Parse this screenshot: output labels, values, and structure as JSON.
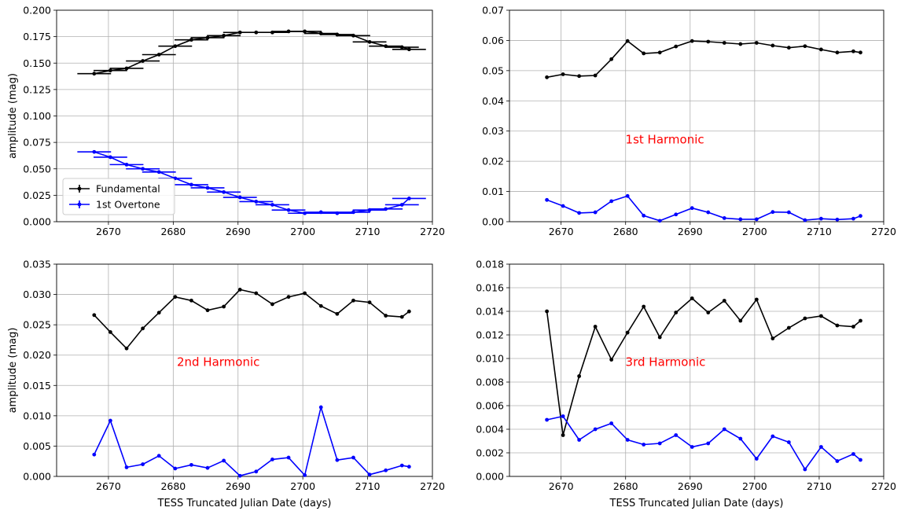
{
  "chart_data": [
    {
      "type": "line",
      "title": "",
      "xlabel": "",
      "ylabel": "amplitude (mag)",
      "xlim": [
        2662,
        2720
      ],
      "ylim": [
        0.0,
        0.2
      ],
      "xticks": [
        "2670",
        "2680",
        "2690",
        "2700",
        "2710",
        "2720"
      ],
      "yticks": [
        "0.000",
        "0.025",
        "0.050",
        "0.075",
        "0.100",
        "0.125",
        "0.150",
        "0.175",
        "0.200"
      ],
      "grid": true,
      "legend": "lower-left",
      "annotation": "",
      "x": [
        2667.8,
        2670.3,
        2672.8,
        2675.3,
        2677.8,
        2680.3,
        2682.8,
        2685.3,
        2687.8,
        2690.3,
        2692.8,
        2695.3,
        2697.8,
        2700.3,
        2702.8,
        2705.3,
        2707.8,
        2710.3,
        2712.8,
        2715.3,
        2716.4
      ],
      "series": [
        {
          "name": "Fundamental",
          "color": "#000000",
          "xerr": 2.6,
          "values": [
            0.14,
            0.143,
            0.145,
            0.152,
            0.158,
            0.166,
            0.172,
            0.174,
            0.176,
            0.179,
            0.179,
            0.179,
            0.18,
            0.18,
            0.178,
            0.177,
            0.176,
            0.17,
            0.166,
            0.165,
            0.163
          ]
        },
        {
          "name": "1st Overtone",
          "color": "#0000ff",
          "xerr": 2.6,
          "values": [
            0.066,
            0.061,
            0.054,
            0.05,
            0.047,
            0.041,
            0.035,
            0.032,
            0.028,
            0.023,
            0.019,
            0.016,
            0.011,
            0.008,
            0.009,
            0.008,
            0.009,
            0.011,
            0.012,
            0.016,
            0.022
          ]
        }
      ]
    },
    {
      "type": "line",
      "title": "",
      "xlabel": "",
      "ylabel": "",
      "xlim": [
        2662,
        2720
      ],
      "ylim": [
        0.0,
        0.07
      ],
      "xticks": [
        "2670",
        "2680",
        "2690",
        "2700",
        "2710",
        "2720"
      ],
      "yticks": [
        "0.00",
        "0.01",
        "0.02",
        "0.03",
        "0.04",
        "0.05",
        "0.06",
        "0.07"
      ],
      "grid": true,
      "legend": "",
      "annotation": "1st Harmonic",
      "x": [
        2667.8,
        2670.3,
        2672.8,
        2675.3,
        2677.8,
        2680.3,
        2682.8,
        2685.3,
        2687.8,
        2690.3,
        2692.8,
        2695.3,
        2697.8,
        2700.3,
        2702.8,
        2705.3,
        2707.8,
        2710.3,
        2712.8,
        2715.3,
        2716.4
      ],
      "series": [
        {
          "color": "#000000",
          "values": [
            0.0478,
            0.0488,
            0.0482,
            0.0484,
            0.0538,
            0.0598,
            0.0557,
            0.056,
            0.058,
            0.0598,
            0.0596,
            0.0592,
            0.0588,
            0.0592,
            0.0583,
            0.0576,
            0.0581,
            0.057,
            0.056,
            0.0564,
            0.056
          ]
        },
        {
          "color": "#0000ff",
          "values": [
            0.0072,
            0.0052,
            0.0029,
            0.0031,
            0.0068,
            0.0085,
            0.002,
            0.0003,
            0.0024,
            0.0045,
            0.0031,
            0.0012,
            0.0008,
            0.0008,
            0.0032,
            0.0031,
            0.0005,
            0.001,
            0.0007,
            0.001,
            0.0019
          ]
        }
      ]
    },
    {
      "type": "line",
      "title": "",
      "xlabel": "TESS Truncated Julian Date (days)",
      "ylabel": "amplitude (mag)",
      "xlim": [
        2662,
        2720
      ],
      "ylim": [
        0.0,
        0.035
      ],
      "xticks": [
        "2670",
        "2680",
        "2690",
        "2700",
        "2710",
        "2720"
      ],
      "yticks": [
        "0.000",
        "0.005",
        "0.010",
        "0.015",
        "0.020",
        "0.025",
        "0.030",
        "0.035"
      ],
      "grid": true,
      "legend": "",
      "annotation": "2nd Harmonic",
      "x": [
        2667.8,
        2670.3,
        2672.8,
        2675.3,
        2677.8,
        2680.3,
        2682.8,
        2685.3,
        2687.8,
        2690.3,
        2692.8,
        2695.3,
        2697.8,
        2700.3,
        2702.8,
        2705.3,
        2707.8,
        2710.3,
        2712.8,
        2715.3,
        2716.4
      ],
      "series": [
        {
          "color": "#000000",
          "values": [
            0.0266,
            0.0238,
            0.0211,
            0.0244,
            0.027,
            0.0296,
            0.029,
            0.0274,
            0.028,
            0.0308,
            0.0302,
            0.0284,
            0.0296,
            0.0302,
            0.0281,
            0.0268,
            0.029,
            0.0287,
            0.0265,
            0.0263,
            0.0272
          ]
        },
        {
          "color": "#0000ff",
          "values": [
            0.0036,
            0.0092,
            0.0015,
            0.002,
            0.0034,
            0.0013,
            0.0019,
            0.0014,
            0.0026,
            0.0001,
            0.0008,
            0.0028,
            0.0031,
            0.0002,
            0.0114,
            0.0027,
            0.0031,
            0.0003,
            0.001,
            0.0018,
            0.0016
          ]
        }
      ]
    },
    {
      "type": "line",
      "title": "",
      "xlabel": "TESS Truncated Julian Date (days)",
      "ylabel": "",
      "xlim": [
        2662,
        2720
      ],
      "ylim": [
        0.0,
        0.018
      ],
      "xticks": [
        "2670",
        "2680",
        "2690",
        "2700",
        "2710",
        "2720"
      ],
      "yticks": [
        "0.000",
        "0.002",
        "0.004",
        "0.006",
        "0.008",
        "0.010",
        "0.012",
        "0.014",
        "0.016",
        "0.018"
      ],
      "grid": true,
      "legend": "",
      "annotation": "3rd Harmonic",
      "x": [
        2667.8,
        2670.3,
        2672.8,
        2675.3,
        2677.8,
        2680.3,
        2682.8,
        2685.3,
        2687.8,
        2690.3,
        2692.8,
        2695.3,
        2697.8,
        2700.3,
        2702.8,
        2705.3,
        2707.8,
        2710.3,
        2712.8,
        2715.3,
        2716.4
      ],
      "series": [
        {
          "color": "#000000",
          "values": [
            0.014,
            0.0035,
            0.0085,
            0.0127,
            0.0099,
            0.0122,
            0.0144,
            0.0118,
            0.0139,
            0.0151,
            0.0139,
            0.0149,
            0.0132,
            0.015,
            0.0117,
            0.0126,
            0.0134,
            0.0136,
            0.0128,
            0.0127,
            0.0132
          ]
        },
        {
          "color": "#0000ff",
          "values": [
            0.0048,
            0.0051,
            0.0031,
            0.004,
            0.0045,
            0.0031,
            0.0027,
            0.0028,
            0.0035,
            0.0025,
            0.0028,
            0.004,
            0.0032,
            0.0015,
            0.0034,
            0.0029,
            0.0006,
            0.0025,
            0.0013,
            0.0019,
            0.0014
          ]
        }
      ]
    }
  ],
  "colors": {
    "fundamental": "#000000",
    "overtone": "#0000ff",
    "annotation": "#ff0000",
    "grid": "#b0b0b0"
  }
}
